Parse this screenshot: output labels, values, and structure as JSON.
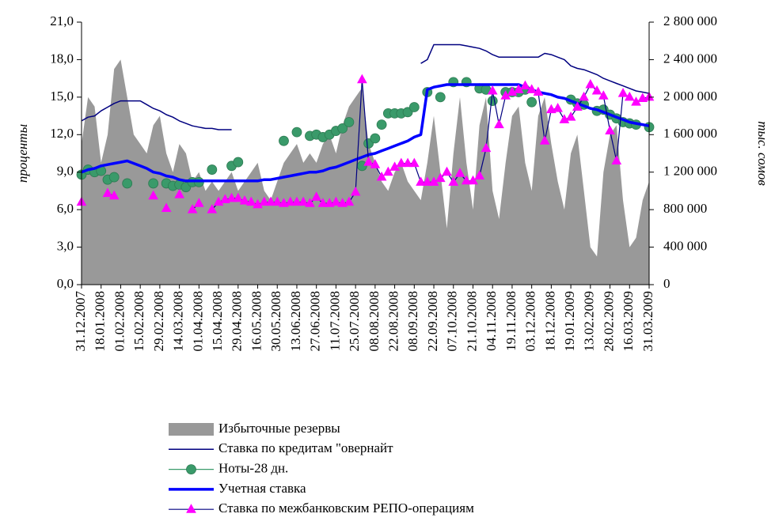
{
  "chart_data": {
    "type": "combo",
    "ylabel": "проценты",
    "y2label": "тыс. сомов",
    "categories": [
      "31.12.2007",
      null,
      null,
      "18.01.2008",
      null,
      null,
      "01.02.2008",
      null,
      null,
      "15.02.2008",
      null,
      null,
      "29.02.2008",
      null,
      null,
      "14.03.2008",
      null,
      null,
      "01.04.2008",
      null,
      null,
      "15.04.2008",
      null,
      null,
      "29.04.2008",
      null,
      null,
      "16.05.2008",
      null,
      null,
      "30.05.2008",
      null,
      null,
      "13.06.2008",
      null,
      null,
      "27.06.2008",
      null,
      null,
      "11.07.2008",
      null,
      null,
      "25.07.2008",
      null,
      null,
      "08.08.2008",
      null,
      null,
      "22.08.2008",
      null,
      null,
      "08.09.2008",
      null,
      null,
      "22.09.2008",
      null,
      null,
      "07.10.2008",
      null,
      null,
      "21.10.2008",
      null,
      null,
      "04.11.2008",
      null,
      null,
      "19.11.2008",
      null,
      null,
      "03.12.2008",
      null,
      null,
      "18.12.2008",
      null,
      null,
      "19.01.2009",
      null,
      null,
      "13.02.2009",
      null,
      null,
      "28.02.2009",
      null,
      null,
      "16.03.2009",
      null,
      null,
      "31.03.2009"
    ],
    "ylim": [
      0,
      21
    ],
    "yticks": [
      {
        "value": 0,
        "label": "0,0"
      },
      {
        "value": 3,
        "label": "3,0"
      },
      {
        "value": 6,
        "label": "6,0"
      },
      {
        "value": 9,
        "label": "9,0"
      },
      {
        "value": 12,
        "label": "12,0"
      },
      {
        "value": 15,
        "label": "15,0"
      },
      {
        "value": 18,
        "label": "18,0"
      },
      {
        "value": 21,
        "label": "21,0"
      }
    ],
    "y2lim": [
      0,
      2800000
    ],
    "y2ticks": [
      0,
      {
        "value": 400000,
        "label": "400 000"
      },
      {
        "value": 800000,
        "label": "800 000"
      },
      {
        "value": 1200000,
        "label": "1 200 000"
      },
      {
        "value": 1600000,
        "label": "1 600 000"
      },
      {
        "value": 2000000,
        "label": "2 000 000"
      },
      {
        "value": 2400000,
        "label": "2 400 000"
      },
      {
        "value": 2800000,
        "label": "2 800 000"
      }
    ],
    "legend": "bottom",
    "series": [
      {
        "name": "Избыточные резервы",
        "type": "area",
        "axis": "y2",
        "color": "#999999",
        "values": [
          1500000,
          2000000,
          1900000,
          1300000,
          1600000,
          2300000,
          2400000,
          2000000,
          1600000,
          1500000,
          1400000,
          1700000,
          1800000,
          1400000,
          1200000,
          1500000,
          1400000,
          1100000,
          1200000,
          1000000,
          1100000,
          1000000,
          1100000,
          1200000,
          1000000,
          1100000,
          1200000,
          1300000,
          1000000,
          900000,
          1100000,
          1300000,
          1400000,
          1500000,
          1300000,
          1400000,
          1300000,
          1500000,
          1600000,
          1400000,
          1700000,
          1900000,
          2000000,
          2100000,
          1500000,
          1300000,
          1100000,
          1000000,
          1200000,
          1300000,
          1100000,
          1000000,
          900000,
          1300000,
          1800000,
          1200000,
          600000,
          1400000,
          2000000,
          1300000,
          800000,
          1700000,
          2000000,
          1000000,
          700000,
          1300000,
          1800000,
          1900000,
          1300000,
          1000000,
          1800000,
          2000000,
          1500000,
          1100000,
          800000,
          1400000,
          1600000,
          1000000,
          400000,
          300000,
          1200000,
          1600000,
          1700000,
          900000,
          400000,
          500000,
          900000,
          1100000
        ]
      },
      {
        "name": "Ставка по кредитам \"овернайт",
        "type": "line",
        "color": "#000080",
        "width": 1.5,
        "values": [
          13.1,
          13.4,
          13.5,
          13.9,
          14.2,
          14.5,
          14.7,
          14.7,
          14.7,
          14.7,
          14.4,
          14.1,
          13.9,
          13.6,
          13.4,
          13.1,
          12.9,
          12.7,
          12.6,
          12.5,
          12.5,
          12.4,
          12.4,
          12.4,
          null,
          null,
          null,
          null,
          null,
          null,
          null,
          null,
          null,
          null,
          null,
          null,
          null,
          null,
          null,
          null,
          null,
          null,
          null,
          null,
          null,
          null,
          null,
          null,
          null,
          null,
          null,
          null,
          17.7,
          18.0,
          19.2,
          19.2,
          19.2,
          19.2,
          19.2,
          19.1,
          19.0,
          18.9,
          18.7,
          18.4,
          18.2,
          18.2,
          18.2,
          18.2,
          18.2,
          18.2,
          18.2,
          18.5,
          18.4,
          18.2,
          18.0,
          17.5,
          17.3,
          17.2,
          17.0,
          16.8,
          16.5,
          16.3,
          16.1,
          15.9,
          15.7,
          15.5,
          15.4,
          15.3
        ]
      },
      {
        "name": "Ноты-28 дн.",
        "type": "scatter",
        "marker": "circle",
        "color": "#3a9a6a",
        "values": [
          8.8,
          9.2,
          9.0,
          9.1,
          8.4,
          8.6,
          null,
          8.1,
          null,
          null,
          null,
          8.1,
          null,
          8.1,
          7.9,
          8.0,
          7.8,
          8.2,
          8.2,
          null,
          9.2,
          null,
          null,
          9.5,
          9.8,
          null,
          null,
          null,
          null,
          null,
          null,
          11.5,
          null,
          12.2,
          null,
          11.9,
          12.0,
          11.8,
          12.0,
          12.3,
          12.5,
          13.0,
          null,
          9.5,
          11.3,
          11.7,
          12.8,
          13.7,
          13.7,
          13.7,
          13.8,
          14.2,
          null,
          15.4,
          null,
          15.0,
          null,
          16.2,
          null,
          16.2,
          null,
          15.7,
          15.6,
          14.7,
          null,
          15.4,
          15.4,
          15.4,
          15.6,
          14.6,
          null,
          null,
          null,
          null,
          null,
          14.8,
          14.5,
          14.4,
          null,
          13.9,
          14.0,
          13.6,
          13.3,
          13.0,
          12.9,
          12.8,
          null,
          12.6
        ]
      },
      {
        "name": "Учетная ставка",
        "type": "line",
        "color": "#0000ff",
        "width": 3.5,
        "values": [
          9.0,
          9.2,
          9.3,
          9.5,
          9.6,
          9.7,
          9.8,
          9.9,
          9.7,
          9.5,
          9.3,
          9.0,
          8.9,
          8.7,
          8.6,
          8.4,
          8.3,
          8.3,
          8.3,
          8.3,
          8.3,
          8.3,
          8.3,
          8.3,
          8.3,
          8.3,
          8.3,
          8.3,
          8.4,
          8.4,
          8.5,
          8.6,
          8.7,
          8.8,
          8.9,
          9.0,
          9.0,
          9.1,
          9.3,
          9.4,
          9.6,
          9.8,
          10.0,
          10.2,
          10.4,
          10.5,
          10.7,
          10.9,
          11.1,
          11.3,
          11.5,
          11.8,
          12.0,
          15.6,
          15.8,
          15.9,
          16.0,
          16.0,
          16.0,
          16.0,
          16.0,
          16.0,
          16.0,
          16.0,
          16.0,
          16.0,
          16.0,
          16.0,
          15.8,
          15.6,
          15.4,
          15.3,
          15.2,
          15.0,
          14.9,
          14.7,
          14.5,
          14.3,
          14.1,
          14.0,
          13.8,
          13.6,
          13.4,
          13.2,
          13.0,
          12.9,
          12.8,
          12.7
        ]
      },
      {
        "name": "Ставка по межбанковским РЕПО-операциям",
        "type": "scatter",
        "marker": "triangle",
        "color": "#ff00ff",
        "line_color": "#000080",
        "values": [
          6.6,
          null,
          null,
          null,
          7.3,
          7.1,
          null,
          null,
          null,
          null,
          null,
          7.1,
          null,
          6.1,
          null,
          7.2,
          null,
          6.0,
          6.5,
          null,
          6.0,
          6.6,
          6.8,
          6.9,
          6.9,
          6.7,
          6.6,
          6.4,
          6.6,
          6.6,
          6.6,
          6.5,
          6.6,
          6.6,
          6.6,
          6.5,
          7.0,
          6.5,
          6.5,
          6.6,
          6.5,
          6.6,
          7.4,
          16.4,
          9.8,
          9.6,
          8.6,
          9.0,
          9.4,
          9.7,
          9.7,
          9.7,
          8.2,
          8.2,
          8.2,
          8.5,
          9.0,
          8.2,
          8.9,
          8.3,
          8.3,
          8.7,
          10.9,
          15.5,
          12.8,
          15.1,
          15.4,
          15.6,
          15.9,
          15.6,
          15.4,
          11.5,
          14.0,
          14.1,
          13.2,
          13.4,
          14.2,
          15.0,
          16.0,
          15.5,
          15.1,
          12.3,
          9.9,
          15.3,
          15.0,
          14.6,
          14.9,
          15.0
        ]
      }
    ]
  }
}
